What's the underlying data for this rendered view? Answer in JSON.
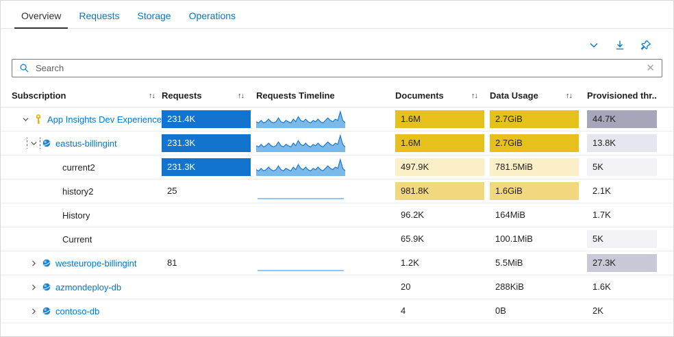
{
  "tabs": [
    {
      "label": "Overview",
      "active": true
    },
    {
      "label": "Requests",
      "active": false
    },
    {
      "label": "Storage",
      "active": false
    },
    {
      "label": "Operations",
      "active": false
    }
  ],
  "toolbar": {
    "buttons": [
      {
        "name": "collapse-chevron",
        "icon": "chevron-down"
      },
      {
        "name": "download",
        "icon": "download"
      },
      {
        "name": "pin",
        "icon": "pin"
      }
    ]
  },
  "search": {
    "placeholder": "Search",
    "value": ""
  },
  "colors": {
    "accent": "#0078d4",
    "blue": "#1374cf",
    "gold_strong": "#e7c11b",
    "gold_medium": "#f1d87e",
    "gold_pale": "#faefc7",
    "gray_strong": "#a6a6ba",
    "gray_medium": "#c8c8d7",
    "gray_light": "#e6e6ee",
    "gray_xlight": "#f3f3f7",
    "spark_fill": "#7cb9e8",
    "spark_stroke": "#1779d0",
    "flatline": "#4da3e8"
  },
  "table": {
    "columns": [
      {
        "label": "Subscription",
        "sortable": true,
        "col": "c-name"
      },
      {
        "label": "Requests",
        "sortable": true,
        "col": "c-req"
      },
      {
        "label": "Requests Timeline",
        "sortable": false,
        "col": "c-tl"
      },
      {
        "label": "Documents",
        "sortable": true,
        "col": "c-doc"
      },
      {
        "label": "Data Usage",
        "sortable": true,
        "col": "c-du"
      },
      {
        "label": "Provisioned thr...",
        "sortable": false,
        "col": "c-pr"
      }
    ],
    "sparkline_points": [
      4,
      3,
      5,
      3,
      4,
      6,
      4,
      3,
      4,
      7,
      4,
      3,
      5,
      4,
      3,
      6,
      4,
      8,
      5,
      4,
      6,
      4,
      3,
      5,
      4,
      6,
      4,
      3,
      5,
      7,
      5,
      4,
      6,
      5,
      12,
      5,
      3
    ],
    "rows": [
      {
        "name": "App Insights Dev Experience",
        "level": 0,
        "icon": "key",
        "expanded": true,
        "link": true,
        "requests": {
          "text": "231.4K",
          "fill": "blue"
        },
        "timeline": "spark",
        "documents": {
          "text": "1.6M",
          "fill": "gold_strong"
        },
        "dataUsage": {
          "text": "2.7GiB",
          "fill": "gold_strong"
        },
        "provisioned": {
          "text": "44.7K",
          "fill": "gray_strong"
        }
      },
      {
        "name": "eastus-billingint",
        "level": 1,
        "icon": "cosmos",
        "expanded": true,
        "link": true,
        "focused": true,
        "requests": {
          "text": "231.3K",
          "fill": "blue"
        },
        "timeline": "spark",
        "documents": {
          "text": "1.6M",
          "fill": "gold_strong"
        },
        "dataUsage": {
          "text": "2.7GiB",
          "fill": "gold_strong"
        },
        "provisioned": {
          "text": "13.8K",
          "fill": "gray_light"
        }
      },
      {
        "name": "current2",
        "level": 2,
        "requests": {
          "text": "231.3K",
          "fill": "blue"
        },
        "timeline": "spark",
        "documents": {
          "text": "497.9K",
          "fill": "gold_pale"
        },
        "dataUsage": {
          "text": "781.5MiB",
          "fill": "gold_pale"
        },
        "provisioned": {
          "text": "5K",
          "fill": "gray_xlight"
        }
      },
      {
        "name": "history2",
        "level": 2,
        "requests": {
          "text": "25"
        },
        "timeline": "flat",
        "documents": {
          "text": "981.8K",
          "fill": "gold_medium"
        },
        "dataUsage": {
          "text": "1.6GiB",
          "fill": "gold_medium"
        },
        "provisioned": {
          "text": "2.1K"
        }
      },
      {
        "name": "History",
        "level": 2,
        "requests": {
          "text": ""
        },
        "timeline": "none",
        "documents": {
          "text": "96.2K"
        },
        "dataUsage": {
          "text": "164MiB"
        },
        "provisioned": {
          "text": "1.7K"
        }
      },
      {
        "name": "Current",
        "level": 2,
        "requests": {
          "text": ""
        },
        "timeline": "none",
        "documents": {
          "text": "65.9K"
        },
        "dataUsage": {
          "text": "100.1MiB"
        },
        "provisioned": {
          "text": "5K",
          "fill": "gray_xlight"
        }
      },
      {
        "name": "westeurope-billingint",
        "level": 1,
        "icon": "cosmos",
        "expanded": false,
        "link": true,
        "requests": {
          "text": "81"
        },
        "timeline": "flat",
        "documents": {
          "text": "1.2K"
        },
        "dataUsage": {
          "text": "5.5MiB"
        },
        "provisioned": {
          "text": "27.3K",
          "fill": "gray_medium"
        }
      },
      {
        "name": "azmondeploy-db",
        "level": 1,
        "icon": "cosmos",
        "expanded": false,
        "link": true,
        "requests": {
          "text": ""
        },
        "timeline": "none",
        "documents": {
          "text": "20"
        },
        "dataUsage": {
          "text": "288KiB"
        },
        "provisioned": {
          "text": "1.6K"
        }
      },
      {
        "name": "contoso-db",
        "level": 1,
        "icon": "cosmos",
        "expanded": false,
        "link": true,
        "requests": {
          "text": ""
        },
        "timeline": "none",
        "documents": {
          "text": "4"
        },
        "dataUsage": {
          "text": "0B"
        },
        "provisioned": {
          "text": "2K"
        }
      }
    ]
  }
}
